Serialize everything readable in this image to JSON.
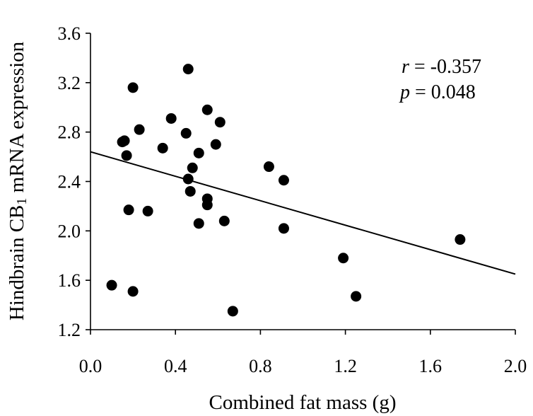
{
  "chart_data": {
    "type": "scatter",
    "title": "",
    "xlabel": "Combined fat mass (g)",
    "ylabel": {
      "prefix": "Hindbrain CB",
      "subscript": "1",
      "suffix": " mRNA expression"
    },
    "xlim": [
      0.0,
      2.0
    ],
    "ylim": [
      1.2,
      3.6
    ],
    "x_ticks": [
      0.0,
      0.4,
      0.8,
      1.2,
      1.6,
      2.0
    ],
    "x_tick_labels": [
      "0.0",
      "0.4",
      "0.8",
      "1.2",
      "1.6",
      "2.0"
    ],
    "y_ticks": [
      1.2,
      1.6,
      2.0,
      2.4,
      2.8,
      3.2,
      3.6
    ],
    "y_tick_labels": [
      "1.2",
      "1.6",
      "2.0",
      "2.4",
      "2.8",
      "3.2",
      "3.6"
    ],
    "grid": false,
    "series": [
      {
        "name": "data",
        "points": [
          {
            "x": 0.1,
            "y": 1.56
          },
          {
            "x": 0.15,
            "y": 2.72
          },
          {
            "x": 0.16,
            "y": 2.73
          },
          {
            "x": 0.17,
            "y": 2.61
          },
          {
            "x": 0.18,
            "y": 2.17
          },
          {
            "x": 0.2,
            "y": 3.16
          },
          {
            "x": 0.2,
            "y": 1.51
          },
          {
            "x": 0.23,
            "y": 2.82
          },
          {
            "x": 0.27,
            "y": 2.16
          },
          {
            "x": 0.34,
            "y": 2.67
          },
          {
            "x": 0.38,
            "y": 2.91
          },
          {
            "x": 0.45,
            "y": 2.79
          },
          {
            "x": 0.46,
            "y": 3.31
          },
          {
            "x": 0.46,
            "y": 2.42
          },
          {
            "x": 0.47,
            "y": 2.32
          },
          {
            "x": 0.48,
            "y": 2.51
          },
          {
            "x": 0.51,
            "y": 2.63
          },
          {
            "x": 0.51,
            "y": 2.06
          },
          {
            "x": 0.55,
            "y": 2.98
          },
          {
            "x": 0.55,
            "y": 2.26
          },
          {
            "x": 0.55,
            "y": 2.21
          },
          {
            "x": 0.59,
            "y": 2.7
          },
          {
            "x": 0.61,
            "y": 2.88
          },
          {
            "x": 0.63,
            "y": 2.08
          },
          {
            "x": 0.67,
            "y": 1.35
          },
          {
            "x": 0.84,
            "y": 2.52
          },
          {
            "x": 0.91,
            "y": 2.41
          },
          {
            "x": 0.91,
            "y": 2.02
          },
          {
            "x": 1.19,
            "y": 1.78
          },
          {
            "x": 1.25,
            "y": 1.47
          },
          {
            "x": 1.74,
            "y": 1.93
          }
        ]
      }
    ],
    "trendline": {
      "x": [
        0.0,
        2.0
      ],
      "y": [
        2.64,
        1.65
      ]
    },
    "annotations": {
      "r_symbol": "r",
      "r_value": " = -0.357",
      "p_symbol": "p",
      "p_value": " = 0.048"
    },
    "colors": {
      "points": "#000000",
      "line": "#000000",
      "axes": "#000000"
    }
  }
}
